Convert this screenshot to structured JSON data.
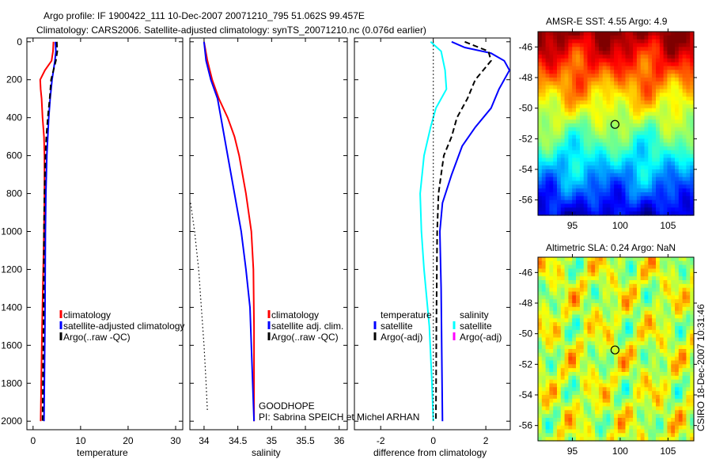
{
  "title_line1": "Argo profile: IF 1900422_111 10-Dec-2007 20071210_795 51.062S 99.457E",
  "title_line2": "Climatology: CARS2006. Satellite-adjusted climatology: synTS_20071210.nc (0.076d earlier)",
  "side_label": "CSIRO 18-Dec-2007 10:31:46",
  "annotation": {
    "project": "GOODHOPE",
    "pi": "PI: Sabrina SPEICH et Michel ARHAN"
  },
  "colors": {
    "climatology": "#ff0000",
    "satellite": "#0000ff",
    "argo": "#000000",
    "salinity_sat": "#00ffff",
    "salinity_argo": "#ff00ff"
  },
  "chart_data": [
    {
      "type": "line",
      "id": "temperature",
      "xlabel": "temperature",
      "xlim": [
        -1.3,
        31.5
      ],
      "ylim": [
        2045,
        -20
      ],
      "xticks": [
        0,
        10,
        20,
        30
      ],
      "yticks": [
        0,
        200,
        400,
        600,
        800,
        1000,
        1200,
        1400,
        1600,
        1800,
        2000
      ],
      "legend": [
        "climatology",
        "satellite-adjusted climatology",
        "Argo(..raw -QC)"
      ],
      "series": [
        {
          "name": "climatology",
          "color": "#ff0000",
          "style": "solid",
          "depth": [
            0,
            50,
            100,
            150,
            200,
            250,
            300,
            400,
            500,
            600,
            800,
            1000,
            1500,
            2000
          ],
          "x": [
            4.3,
            4.2,
            3.9,
            2.5,
            1.5,
            1.6,
            1.8,
            2.0,
            2.3,
            2.4,
            2.4,
            2.3,
            1.9,
            1.6
          ]
        },
        {
          "name": "satellite-adjusted climatology",
          "color": "#0000ff",
          "style": "solid",
          "depth": [
            0,
            50,
            100,
            200,
            300,
            400,
            600,
            800,
            1000,
            1500,
            2000
          ],
          "x": [
            4.7,
            4.8,
            4.6,
            4.0,
            3.6,
            3.3,
            2.9,
            2.7,
            2.6,
            2.5,
            2.3
          ]
        },
        {
          "name": "Argo(..raw -QC)",
          "color": "#000000",
          "style": "dashed",
          "depth": [
            0,
            50,
            100,
            200,
            300,
            400,
            500,
            600,
            800,
            1000,
            1500,
            2000
          ],
          "x": [
            5.0,
            5.1,
            4.8,
            3.8,
            3.5,
            3.1,
            2.8,
            2.6,
            2.4,
            2.3,
            2.2,
            2.0
          ]
        }
      ]
    },
    {
      "type": "line",
      "id": "salinity",
      "xlabel": "salinity",
      "xlim": [
        33.79,
        36.12
      ],
      "ylim": [
        2045,
        -20
      ],
      "xticks": [
        34,
        34.5,
        35,
        35.5,
        36
      ],
      "legend": [
        "climatology",
        "satellite adj. clim.",
        "Argo(..raw -QC)"
      ],
      "series": [
        {
          "name": "climatology",
          "color": "#ff0000",
          "style": "solid",
          "depth": [
            0,
            100,
            200,
            300,
            400,
            500,
            600,
            800,
            1000,
            1200,
            1500,
            2000
          ],
          "x": [
            34.0,
            34.05,
            34.12,
            34.22,
            34.35,
            34.45,
            34.52,
            34.62,
            34.7,
            34.73,
            34.74,
            34.74
          ]
        },
        {
          "name": "satellite adj. clim.",
          "color": "#0000ff",
          "style": "solid",
          "depth": [
            0,
            100,
            200,
            300,
            400,
            600,
            800,
            1000,
            1200,
            1400,
            1800,
            2000
          ],
          "x": [
            34.0,
            34.03,
            34.1,
            34.2,
            34.25,
            34.35,
            34.45,
            34.55,
            34.62,
            34.68,
            34.72,
            34.74
          ]
        },
        {
          "name": "Argo(..raw -QC)",
          "color": "#000000",
          "style": "dotted",
          "depth": [
            850,
            1000,
            1200,
            1400,
            1600,
            1800,
            1950
          ],
          "x": [
            33.8,
            33.86,
            33.92,
            33.96,
            34.0,
            34.03,
            34.05
          ]
        }
      ]
    },
    {
      "type": "line",
      "id": "difference",
      "xlabel": "difference from climatology",
      "xlim": [
        -3,
        2.93
      ],
      "ylim": [
        2045,
        -20
      ],
      "xticks": [
        -2,
        0,
        2
      ],
      "legend_temp": {
        "title": "temperature",
        "items": [
          "satellite",
          "Argo(-adj)"
        ]
      },
      "legend_sal": {
        "title": "salinity",
        "items": [
          "satellite",
          "Argo(-adj)"
        ]
      },
      "series": [
        {
          "name": "salinity satellite",
          "color": "#00ffff",
          "style": "solid",
          "depth": [
            0,
            50,
            150,
            250,
            350,
            450,
            600,
            800,
            1000,
            1200,
            1500,
            1800,
            2000
          ],
          "x": [
            -0.1,
            0.3,
            0.45,
            0.5,
            0.1,
            -0.1,
            -0.35,
            -0.5,
            -0.45,
            -0.35,
            -0.15,
            -0.05,
            0.0
          ]
        },
        {
          "name": "temperature satellite",
          "color": "#0000ff",
          "style": "solid",
          "depth": [
            0,
            30,
            60,
            100,
            150,
            250,
            350,
            450,
            550,
            700,
            850,
            1000,
            1300,
            1600,
            2000
          ],
          "x": [
            0.7,
            1.2,
            2.2,
            2.7,
            2.9,
            2.5,
            2.2,
            1.6,
            1.1,
            0.7,
            0.35,
            0.25,
            0.3,
            0.32,
            0.35
          ]
        },
        {
          "name": "temperature Argo(-adj)",
          "color": "#000000",
          "style": "dashed",
          "depth": [
            0,
            50,
            100,
            150,
            200,
            300,
            400,
            500,
            600,
            700,
            800,
            1000,
            1500,
            2000
          ],
          "x": [
            1.2,
            2.1,
            2.2,
            1.9,
            1.6,
            1.3,
            0.9,
            0.7,
            0.4,
            0.3,
            0.2,
            0.15,
            0.12,
            0.1
          ]
        },
        {
          "name": "zero line",
          "color": "#000000",
          "style": "dotted",
          "depth": [
            0,
            2000
          ],
          "x": [
            0,
            0
          ]
        }
      ]
    },
    {
      "type": "heatmap",
      "id": "sst",
      "title": "AMSR-E SST: 4.55 Argo: 4.9",
      "xlim": [
        91.4,
        107.7
      ],
      "ylim": [
        -45,
        -57
      ],
      "xticks": [
        95,
        100,
        105
      ],
      "yticks": [
        -46,
        -48,
        -50,
        -52,
        -54,
        -56
      ],
      "marker": {
        "lon": 99.457,
        "lat": -51.062
      }
    },
    {
      "type": "heatmap",
      "id": "sla",
      "title": "Altimetric SLA: 0.24 Argo: NaN",
      "xlim": [
        91.4,
        107.7
      ],
      "ylim": [
        -45,
        -57
      ],
      "xticks": [
        95,
        100,
        105
      ],
      "yticks": [
        -46,
        -48,
        -50,
        -52,
        -54,
        -56
      ],
      "marker": {
        "lon": 99.457,
        "lat": -51.062
      }
    }
  ]
}
